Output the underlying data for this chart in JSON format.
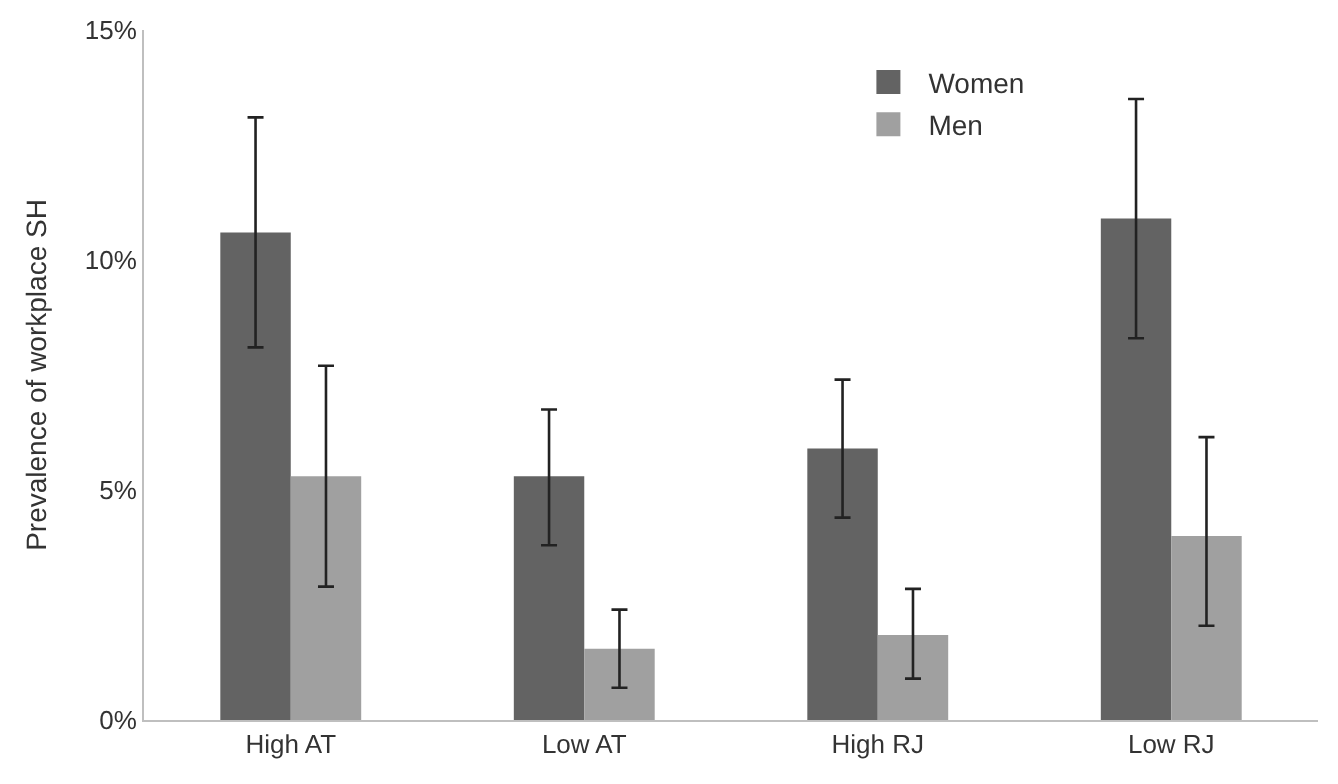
{
  "chart_data": {
    "type": "bar",
    "ylabel": "Prevalence of workplace SH",
    "categories": [
      "High AT",
      "Low AT",
      "High RJ",
      "Low RJ"
    ],
    "series": [
      {
        "name": "Women",
        "color": "#636363",
        "values": [
          10.6,
          5.3,
          5.9,
          10.9
        ],
        "errors": [
          [
            8.1,
            13.1
          ],
          [
            3.8,
            6.75
          ],
          [
            4.4,
            7.4
          ],
          [
            8.3,
            13.5
          ]
        ]
      },
      {
        "name": "Men",
        "color": "#a0a0a0",
        "values": [
          5.3,
          1.55,
          1.85,
          4.0
        ],
        "errors": [
          [
            2.9,
            7.7
          ],
          [
            0.7,
            2.4
          ],
          [
            0.9,
            2.85
          ],
          [
            2.05,
            6.15
          ]
        ]
      }
    ],
    "ylim": [
      0,
      15
    ],
    "yticks": [
      {
        "value": 0,
        "label": "0%"
      },
      {
        "value": 5,
        "label": "5%"
      },
      {
        "value": 10,
        "label": "10%"
      },
      {
        "value": 15,
        "label": "15%"
      }
    ],
    "legend": "top right"
  }
}
